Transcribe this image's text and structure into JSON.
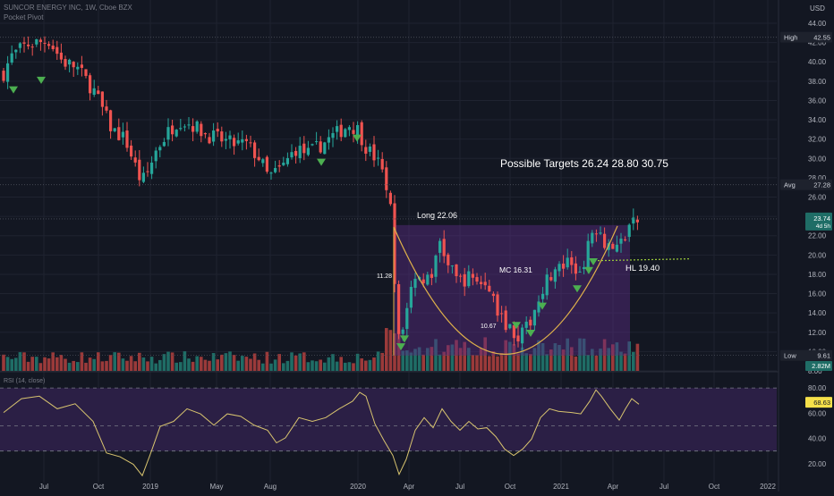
{
  "header": {
    "symbol_line": "SUNCOR ENERGY INC, 1W, Cboe BZX",
    "indicator": "Pocket Pivot",
    "currency": "USD"
  },
  "axis": {
    "price_ticks": [
      "44.00",
      "42.00",
      "40.00",
      "38.00",
      "36.00",
      "34.00",
      "32.00",
      "30.00",
      "28.00",
      "26.00",
      "24.00",
      "22.00",
      "20.00",
      "18.00",
      "16.00",
      "14.00",
      "12.00",
      "10.00",
      "8.00"
    ],
    "rsi_ticks": [
      "80.00",
      "60.00",
      "40.00",
      "20.00"
    ],
    "time_ticks": [
      "Jul",
      "Oct",
      "2019",
      "Apr",
      "May",
      "Aug",
      "2020",
      "Apr",
      "Jul",
      "Oct",
      "2021",
      "Apr",
      "Jul",
      "Oct",
      "2022"
    ]
  },
  "price_tags": {
    "high": {
      "label": "High",
      "value": "42.55"
    },
    "avg": {
      "label": "Avg",
      "value": "27.28"
    },
    "low": {
      "label": "Low",
      "value": "9.61"
    },
    "last": {
      "value": "23.74",
      "countdown": "4d 5h"
    },
    "volume": {
      "value": "2.82M"
    },
    "rsi": {
      "value": "68.63"
    }
  },
  "rsi_pane": {
    "title": "RSI (14, close)"
  },
  "annotations": {
    "targets": "Possible Targets 26.24    28.80    30.75",
    "long": "Long 22.06",
    "mc": "MC 16.31",
    "hl": "HL 19.40",
    "p1128": "11.28",
    "p1067": "10.67"
  },
  "colors": {
    "up": "#26a69a",
    "down": "#ef5350",
    "vol_up": "#1f6d66",
    "vol_down": "#9b3a3a",
    "rsi_line": "#d8c46f",
    "cup": "#e0b24a",
    "box": "#5b2d86",
    "pivot": "#4caf50",
    "hl_line": "#9ccc3a"
  },
  "chart_data": {
    "type": "candlestick",
    "title": "SUNCOR ENERGY INC, 1W, Cboe BZX",
    "ylim": [
      7,
      46
    ],
    "key_points": [
      {
        "x": "2018-07",
        "close": 40.8
      },
      {
        "x": "2018-09",
        "close": 42.0
      },
      {
        "x": "2018-12",
        "close": 27.5
      },
      {
        "x": "2019-02",
        "close": 34.5
      },
      {
        "x": "2019-08",
        "close": 28.0
      },
      {
        "x": "2019-12",
        "close": 33.8
      },
      {
        "x": "2020-03",
        "close": 11.3
      },
      {
        "x": "2020-06",
        "close": 21.5
      },
      {
        "x": "2020-10",
        "close": 10.7
      },
      {
        "x": "2021-01",
        "close": 18.2
      },
      {
        "x": "2021-03",
        "close": 23.1
      },
      {
        "x": "2021-05",
        "close": 23.74
      }
    ],
    "high": 42.55,
    "low": 9.61,
    "avg": 27.28,
    "last": 23.74,
    "rsi_last": 68.63,
    "targets": [
      26.24,
      28.8,
      30.75
    ],
    "long_entry": 22.06,
    "higher_low": 19.4
  }
}
